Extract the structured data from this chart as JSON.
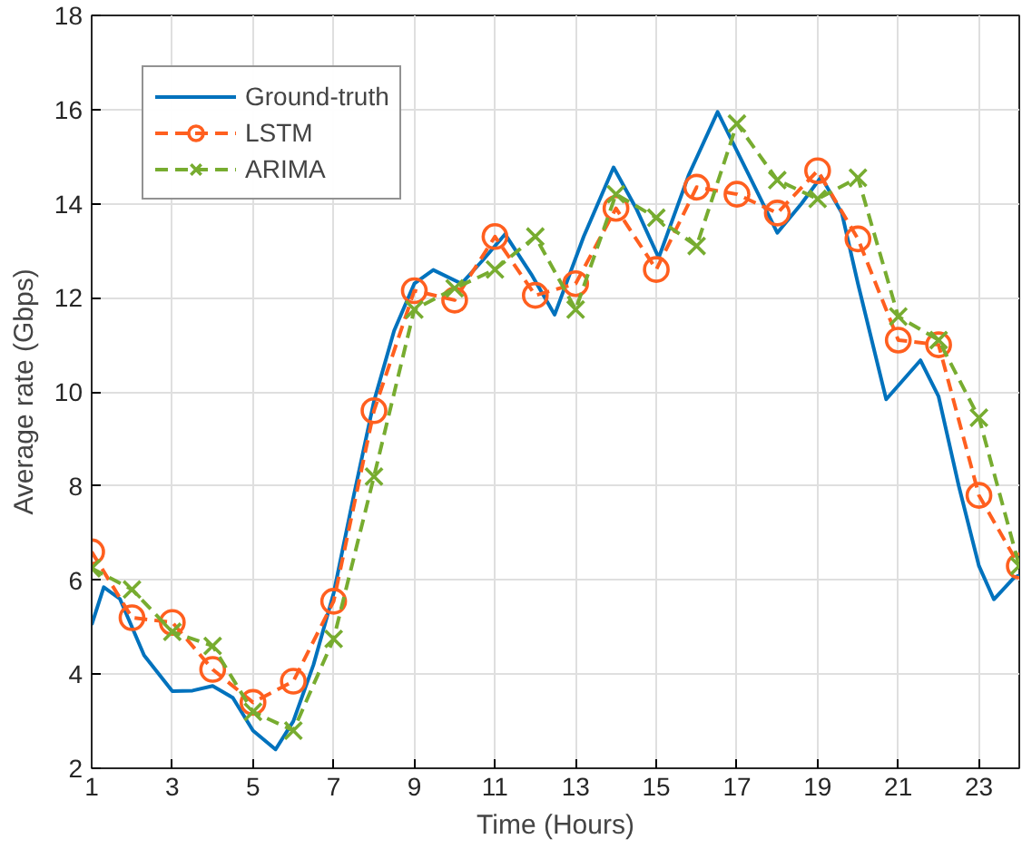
{
  "chart_data": {
    "type": "line",
    "xlabel": "Time (Hours)",
    "ylabel": "Average rate (Gbps)",
    "xlim": [
      1,
      24
    ],
    "ylim": [
      2,
      18
    ],
    "xticks": [
      1,
      3,
      5,
      7,
      9,
      11,
      13,
      15,
      17,
      19,
      21,
      23
    ],
    "yticks": [
      2,
      4,
      6,
      8,
      10,
      12,
      14,
      16,
      18
    ],
    "grid": true,
    "legend": "top left",
    "series": [
      {
        "name": "Ground-truth",
        "color": "#0072bd",
        "marker": "none",
        "line_style": "solid",
        "x": [
          1,
          1.3,
          1.7,
          2.3,
          3,
          3.5,
          4,
          4.5,
          5,
          5.56,
          6,
          6.5,
          7,
          7.5,
          8,
          8.5,
          9,
          9.47,
          10.17,
          10.7,
          11.25,
          11.9,
          12.48,
          13.2,
          13.94,
          14.5,
          15.06,
          15.8,
          16.52,
          17.3,
          18,
          18.6,
          19.09,
          19.6,
          20,
          20.7,
          21.55,
          22,
          22.5,
          23,
          23.37,
          23.87,
          24
        ],
        "values": [
          5.05,
          5.85,
          5.6,
          4.4,
          3.64,
          3.65,
          3.75,
          3.5,
          2.8,
          2.4,
          3.0,
          4.2,
          5.72,
          7.8,
          9.8,
          11.3,
          12.3,
          12.59,
          12.3,
          12.8,
          13.35,
          12.5,
          11.64,
          13.3,
          14.77,
          13.9,
          12.85,
          14.6,
          15.95,
          14.6,
          13.38,
          14.0,
          14.57,
          13.8,
          12.3,
          9.84,
          10.67,
          9.9,
          8.0,
          6.3,
          5.59,
          6.05,
          6.1
        ]
      },
      {
        "name": "LSTM",
        "color": "#ff5f1f",
        "marker": "circle",
        "line_style": "dashed",
        "x": [
          1,
          2,
          3,
          4,
          5,
          6,
          7,
          8,
          9,
          10,
          11,
          12,
          13,
          14,
          15,
          16,
          17,
          18,
          19,
          20,
          21,
          22,
          23,
          24
        ],
        "values": [
          6.6,
          5.2,
          5.1,
          4.1,
          3.4,
          3.85,
          5.55,
          9.6,
          12.15,
          11.95,
          13.3,
          12.05,
          12.3,
          13.9,
          12.6,
          14.35,
          14.2,
          13.8,
          14.7,
          13.25,
          11.1,
          11.0,
          7.8,
          6.3
        ]
      },
      {
        "name": "ARIMA",
        "color": "#77ac30",
        "marker": "cross",
        "line_style": "dashed",
        "x": [
          1,
          2,
          3,
          4,
          5,
          6,
          7,
          8,
          9,
          10,
          11,
          12,
          13,
          14,
          15,
          16,
          17,
          18,
          19,
          20,
          21,
          22,
          23,
          24
        ],
        "values": [
          6.25,
          5.8,
          4.9,
          4.6,
          3.2,
          2.8,
          4.75,
          8.2,
          11.75,
          12.2,
          12.6,
          13.3,
          11.75,
          14.2,
          13.7,
          13.1,
          15.7,
          14.5,
          14.1,
          14.55,
          11.6,
          11.1,
          9.45,
          6.3
        ]
      }
    ]
  }
}
